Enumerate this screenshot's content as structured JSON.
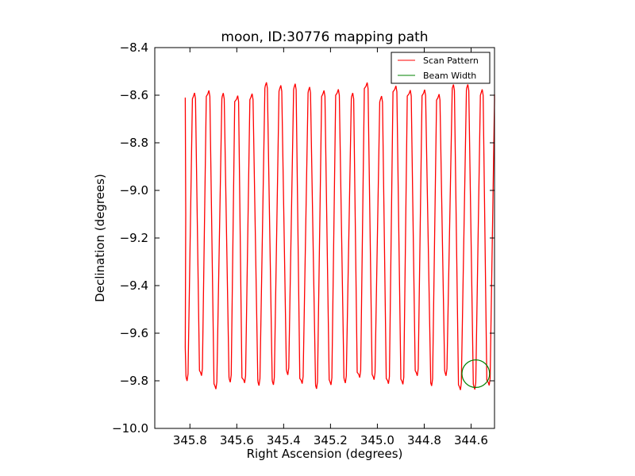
{
  "chart_data": {
    "type": "line",
    "title": "moon, ID:30776 mapping path",
    "xlabel": "Right Ascension (degrees)",
    "ylabel": "Declination (degrees)",
    "xlim": [
      345.95,
      344.5
    ],
    "ylim": [
      -10.0,
      -8.4
    ],
    "x_axis_reversed": true,
    "xticks": [
      345.8,
      345.6,
      345.4,
      345.2,
      345.0,
      344.8,
      344.6
    ],
    "xtick_labels": [
      "345.8",
      "345.6",
      "345.4",
      "345.2",
      "345.0",
      "344.8",
      "344.6"
    ],
    "yticks": [
      -8.4,
      -8.6,
      -8.8,
      -9.0,
      -9.2,
      -9.4,
      -9.6,
      -9.8,
      -10.0
    ],
    "ytick_labels": [
      "−8.4",
      "−8.6",
      "−8.8",
      "−9.0",
      "−9.2",
      "−9.4",
      "−9.6",
      "−9.8",
      "−10.0"
    ],
    "grid": false,
    "legend_position": "top-right",
    "series": [
      {
        "name": "Scan Pattern",
        "color": "#ff0000",
        "style": "serpentine raster, alternating vertical legs",
        "ra_start": 345.82,
        "ra_end": 344.5,
        "leg_count": 44,
        "dec_top_range": [
          -8.62,
          -8.56
        ],
        "dec_bottom_range": [
          -9.83,
          -9.76
        ],
        "start_point": [
          345.82,
          -8.61
        ]
      },
      {
        "name": "Beam Width",
        "color": "#008000",
        "shape": "circle",
        "center": [
          344.58,
          -9.77
        ],
        "radius_deg": 0.058
      }
    ]
  }
}
